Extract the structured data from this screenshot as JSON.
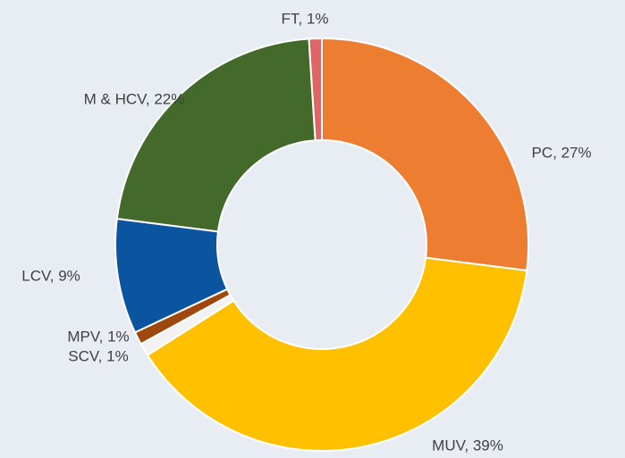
{
  "chart_data": {
    "type": "donut",
    "categories": [
      "PC",
      "MUV",
      "SCV",
      "MPV",
      "LCV",
      "M & HCV",
      "FT"
    ],
    "values": [
      27,
      39,
      1,
      1,
      9,
      22,
      1
    ],
    "value_labels": [
      "PC, 27%",
      "MUV, 39%",
      "SCV, 1%",
      "MPV, 1%",
      "LCV, 9%",
      "M & HCV, 22%",
      "FT, 1%"
    ],
    "colors": [
      "#ED7D31",
      "#FFC000",
      "#F2F2F2",
      "#9E480E",
      "#0B55A0",
      "#436A2B",
      "#E06666"
    ]
  }
}
